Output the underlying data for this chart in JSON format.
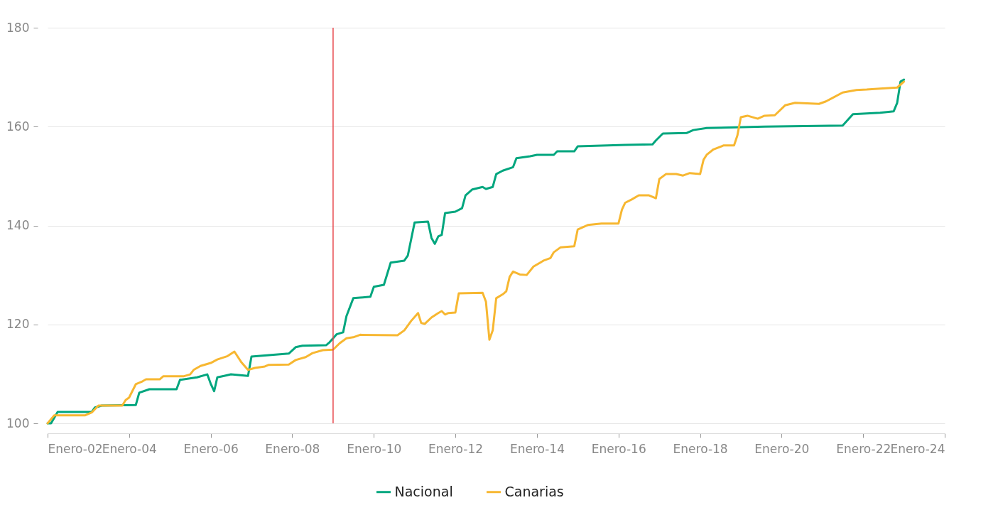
{
  "chart_data": {
    "type": "line",
    "xlim": [
      "2002-01",
      "2024-01"
    ],
    "xticks": [
      {
        "value": "2002-01",
        "label": "Enero-02"
      },
      {
        "value": "2004-01",
        "label": "Enero-04"
      },
      {
        "value": "2006-01",
        "label": "Enero-06"
      },
      {
        "value": "2008-01",
        "label": "Enero-08"
      },
      {
        "value": "2010-01",
        "label": "Enero-10"
      },
      {
        "value": "2012-01",
        "label": "Enero-12"
      },
      {
        "value": "2014-01",
        "label": "Enero-14"
      },
      {
        "value": "2016-01",
        "label": "Enero-16"
      },
      {
        "value": "2018-01",
        "label": "Enero-18"
      },
      {
        "value": "2020-01",
        "label": "Enero-20"
      },
      {
        "value": "2022-01",
        "label": "Enero-22"
      },
      {
        "value": "2024-01",
        "label": "Enero-24"
      }
    ],
    "ylim": [
      100,
      180
    ],
    "yticks": [
      100,
      120,
      140,
      160,
      180
    ],
    "grid": "y",
    "legend": "bottom",
    "marker": "none",
    "line_style": "solid",
    "ref_lines": [
      {
        "axis": "x",
        "value": "2009-01",
        "color": "#e8474c"
      }
    ],
    "series": [
      {
        "name": "Nacional",
        "color": "#00a67e",
        "x": [
          "2002-01",
          "2002-02",
          "2002-04",
          "2003-02",
          "2003-03",
          "2003-05",
          "2004-03",
          "2004-04",
          "2004-07",
          "2005-03",
          "2005-04",
          "2005-09",
          "2005-12",
          "2006-01",
          "2006-02",
          "2006-03",
          "2006-05",
          "2006-07",
          "2006-12",
          "2007-01",
          "2007-12",
          "2008-02",
          "2008-04",
          "2008-11",
          "2008-12",
          "2009-02",
          "2009-04",
          "2009-05",
          "2009-07",
          "2009-12",
          "2010-01",
          "2010-04",
          "2010-06",
          "2010-10",
          "2010-11",
          "2011-01",
          "2011-05",
          "2011-06",
          "2011-07",
          "2011-08",
          "2011-09",
          "2011-10",
          "2012-01",
          "2012-03",
          "2012-04",
          "2012-06",
          "2012-09",
          "2012-10",
          "2012-12",
          "2013-01",
          "2013-03",
          "2013-06",
          "2013-07",
          "2013-11",
          "2014-01",
          "2014-06",
          "2014-07",
          "2014-12",
          "2015-01",
          "2016-03",
          "2016-11",
          "2016-12",
          "2017-02",
          "2017-09",
          "2017-11",
          "2018-03",
          "2019-08",
          "2021-07",
          "2021-10",
          "2022-06",
          "2022-10",
          "2022-11",
          "2022-12",
          "2023-01"
        ],
        "values": [
          100.0,
          100.0,
          102.3,
          102.3,
          103.2,
          103.6,
          103.7,
          106.2,
          106.9,
          106.9,
          108.8,
          109.3,
          109.9,
          108.0,
          106.5,
          109.3,
          109.6,
          109.9,
          109.6,
          113.5,
          114.1,
          115.4,
          115.7,
          115.8,
          116.4,
          118.0,
          118.4,
          121.7,
          125.3,
          125.6,
          127.6,
          128.0,
          132.5,
          132.9,
          133.9,
          140.6,
          140.8,
          137.5,
          136.3,
          137.8,
          138.1,
          142.5,
          142.8,
          143.5,
          146.1,
          147.3,
          147.8,
          147.4,
          147.8,
          150.4,
          151.1,
          151.8,
          153.6,
          154.0,
          154.3,
          154.3,
          155.0,
          155.0,
          156.0,
          156.3,
          156.4,
          157.2,
          158.6,
          158.7,
          159.3,
          159.7,
          160.0,
          160.2,
          162.5,
          162.8,
          163.1,
          164.8,
          169.1,
          169.5
        ]
      },
      {
        "name": "Canarias",
        "color": "#f7b731",
        "x": [
          "2002-01",
          "2002-03",
          "2002-12",
          "2003-02",
          "2003-04",
          "2003-11",
          "2003-12",
          "2004-01",
          "2004-03",
          "2004-05",
          "2004-06",
          "2004-10",
          "2004-11",
          "2005-05",
          "2005-07",
          "2005-08",
          "2005-10",
          "2006-01",
          "2006-03",
          "2006-06",
          "2006-08",
          "2006-10",
          "2006-12",
          "2007-02",
          "2007-05",
          "2007-06",
          "2007-12",
          "2008-02",
          "2008-05",
          "2008-07",
          "2008-10",
          "2009-01",
          "2009-03",
          "2009-05",
          "2009-07",
          "2009-09",
          "2010-08",
          "2010-10",
          "2010-12",
          "2011-02",
          "2011-03",
          "2011-04",
          "2011-06",
          "2011-08",
          "2011-09",
          "2011-10",
          "2011-11",
          "2012-01",
          "2012-02",
          "2012-09",
          "2012-10",
          "2012-11",
          "2012-12",
          "2013-01",
          "2013-03",
          "2013-04",
          "2013-05",
          "2013-06",
          "2013-08",
          "2013-10",
          "2013-12",
          "2014-03",
          "2014-05",
          "2014-06",
          "2014-08",
          "2014-12",
          "2015-01",
          "2015-04",
          "2015-08",
          "2016-01",
          "2016-02",
          "2016-03",
          "2016-05",
          "2016-07",
          "2016-10",
          "2016-12",
          "2017-01",
          "2017-03",
          "2017-06",
          "2017-08",
          "2017-10",
          "2018-01",
          "2018-02",
          "2018-03",
          "2018-05",
          "2018-08",
          "2018-11",
          "2018-12",
          "2019-01",
          "2019-03",
          "2019-06",
          "2019-08",
          "2019-11",
          "2020-02",
          "2020-05",
          "2020-12",
          "2021-02",
          "2021-04",
          "2021-07",
          "2021-11",
          "2022-02",
          "2022-06",
          "2022-11",
          "2023-01"
        ],
        "values": [
          100.0,
          101.6,
          101.6,
          102.2,
          103.6,
          103.6,
          104.7,
          105.2,
          107.9,
          108.5,
          108.9,
          108.9,
          109.5,
          109.5,
          109.9,
          110.8,
          111.6,
          112.2,
          112.9,
          113.6,
          114.5,
          112.4,
          110.8,
          111.2,
          111.5,
          111.8,
          111.9,
          112.8,
          113.4,
          114.2,
          114.8,
          114.9,
          116.2,
          117.2,
          117.4,
          117.9,
          117.8,
          118.8,
          120.7,
          122.3,
          120.3,
          120.1,
          121.4,
          122.3,
          122.7,
          122.0,
          122.3,
          122.4,
          126.3,
          126.4,
          124.6,
          116.9,
          118.8,
          125.3,
          126.1,
          126.7,
          129.6,
          130.7,
          130.1,
          130.0,
          131.7,
          132.9,
          133.4,
          134.6,
          135.6,
          135.8,
          139.2,
          140.1,
          140.4,
          140.4,
          143.2,
          144.6,
          145.3,
          146.1,
          146.1,
          145.5,
          149.4,
          150.4,
          150.4,
          150.1,
          150.6,
          150.4,
          153.3,
          154.3,
          155.4,
          156.2,
          156.2,
          158.2,
          161.9,
          162.2,
          161.6,
          162.2,
          162.3,
          164.3,
          164.8,
          164.6,
          165.1,
          165.8,
          166.9,
          167.4,
          167.5,
          167.7,
          167.9,
          169.1
        ]
      }
    ]
  }
}
